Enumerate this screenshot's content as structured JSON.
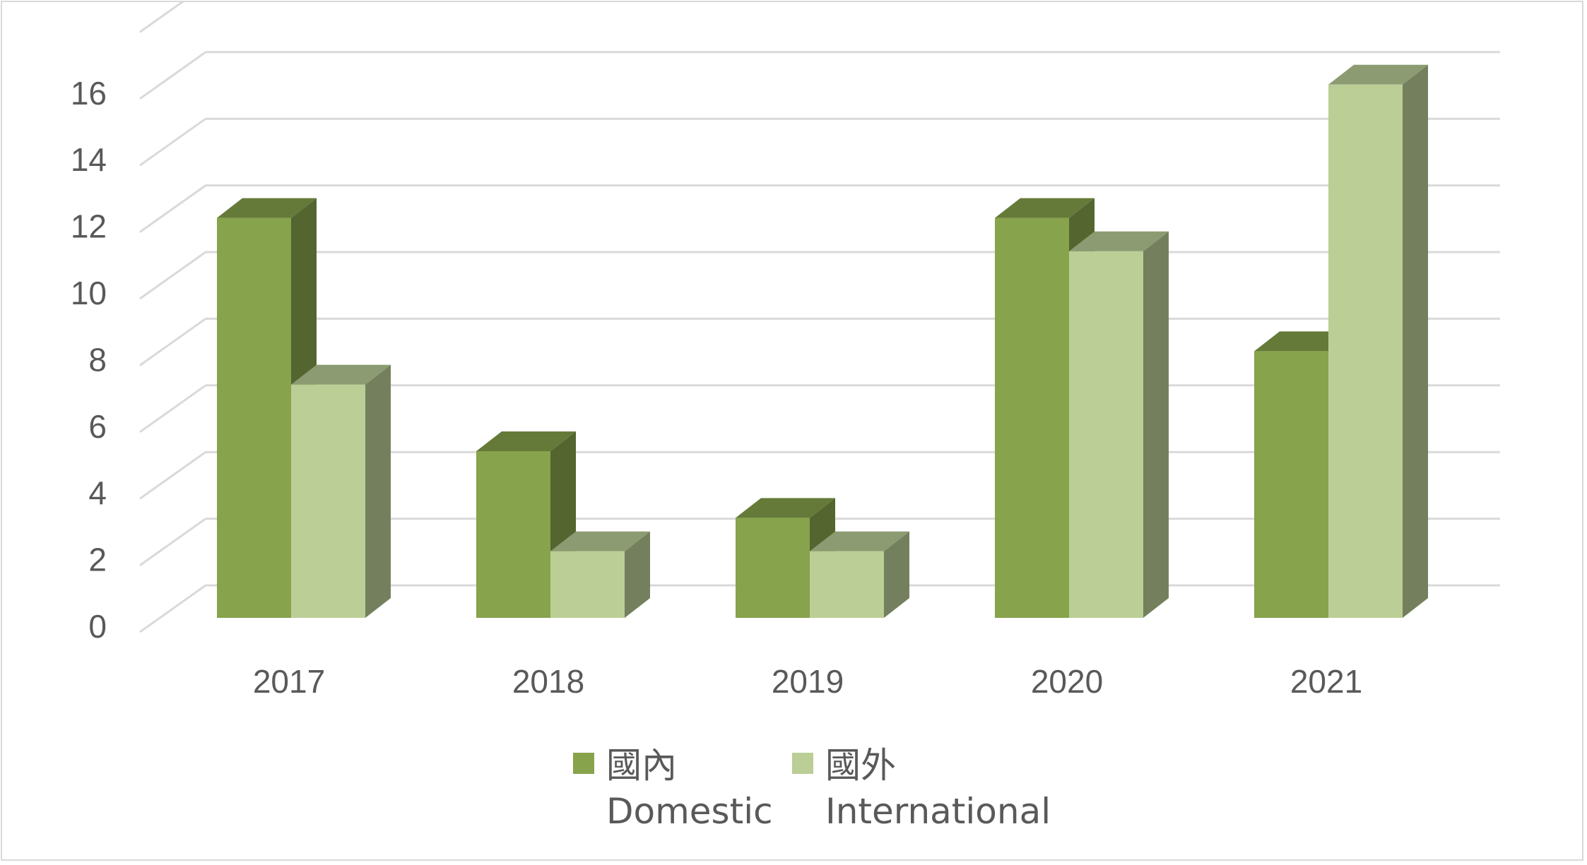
{
  "chart_data": {
    "type": "bar",
    "style": "3d-clustered-column",
    "categories": [
      "2017",
      "2018",
      "2019",
      "2020",
      "2021"
    ],
    "series": [
      {
        "name": "國內 Domestic",
        "name_zh": "國內",
        "name_en": "Domestic",
        "values": [
          12,
          5,
          3,
          12,
          8
        ],
        "color": "#87a34c"
      },
      {
        "name": "國外 International",
        "name_zh": "國外",
        "name_en": "International",
        "values": [
          7,
          2,
          2,
          11,
          16
        ],
        "color": "#bbce96"
      }
    ],
    "yticks": [
      "0",
      "2",
      "4",
      "6",
      "8",
      "10",
      "12",
      "14",
      "16"
    ],
    "ylim": [
      0,
      16
    ],
    "grid": true,
    "legend_position": "bottom",
    "title": "",
    "xlabel": "",
    "ylabel": ""
  }
}
